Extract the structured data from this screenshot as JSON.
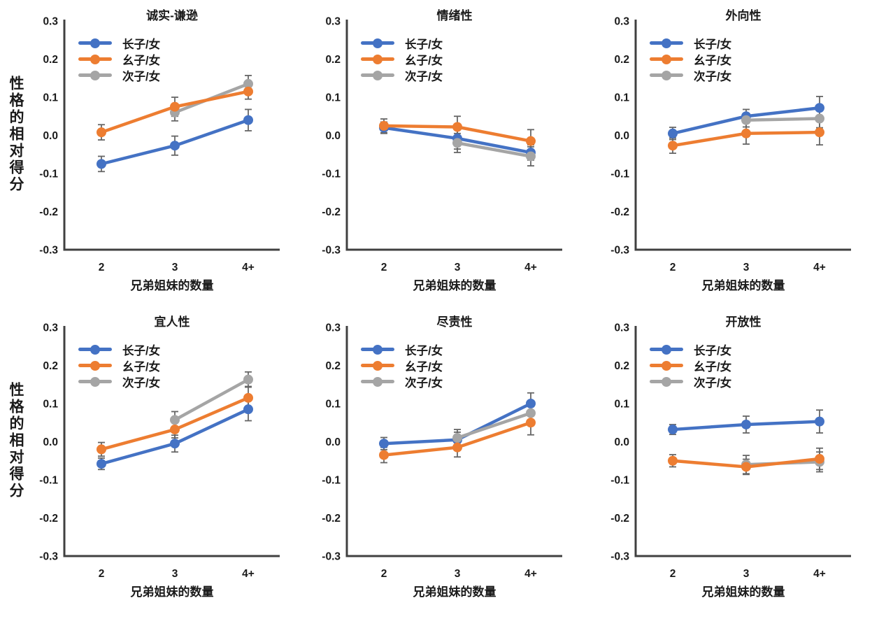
{
  "figure": {
    "y_axis_title": "性格的相对得分",
    "x_axis_title": "兄弟姐妹的数量"
  },
  "legend": [
    "长子/女",
    "幺子/女",
    "次子/女"
  ],
  "colors": {
    "firstborn": "#4472C4",
    "lastborn": "#ED7D31",
    "middleborn": "#A5A5A5",
    "error_bar": "#666666",
    "axis": "#404040",
    "text": "#1a1a1a",
    "background": "#ffffff"
  },
  "chart_data": [
    {
      "type": "line",
      "title": "诚实-谦逊",
      "categories": [
        "2",
        "3",
        "4+"
      ],
      "xlabel": "兄弟姐妹的数量",
      "ylabel": "性格的相对得分",
      "ylim": [
        -0.3,
        0.3
      ],
      "yticks": [
        "0.3",
        "0.2",
        "0.1",
        "0.0",
        "-0.1",
        "-0.2",
        "-0.3"
      ],
      "grid": false,
      "legend_position": "top-left-inside",
      "series": [
        {
          "name": "长子/女",
          "color": "#4472C4",
          "values": [
            -0.075,
            -0.027,
            0.04
          ],
          "errors": [
            0.02,
            0.025,
            0.028
          ]
        },
        {
          "name": "幺子/女",
          "color": "#ED7D31",
          "values": [
            0.008,
            0.075,
            0.115
          ],
          "errors": [
            0.02,
            0.025,
            0.02
          ]
        },
        {
          "name": "次子/女",
          "color": "#A5A5A5",
          "values": [
            null,
            0.06,
            0.135
          ],
          "errors": [
            null,
            0.022,
            0.022
          ]
        }
      ]
    },
    {
      "type": "line",
      "title": "情绪性",
      "categories": [
        "2",
        "3",
        "4+"
      ],
      "xlabel": "兄弟姐妹的数量",
      "ylabel": "性格的相对得分",
      "ylim": [
        -0.3,
        0.3
      ],
      "yticks": [
        "0.3",
        "0.2",
        "0.1",
        "0.0",
        "-0.1",
        "-0.2",
        "-0.3"
      ],
      "grid": false,
      "legend_position": "top-left-inside",
      "series": [
        {
          "name": "长子/女",
          "color": "#4472C4",
          "values": [
            0.02,
            -0.008,
            -0.045
          ],
          "errors": [
            0.015,
            0.028,
            0.02
          ]
        },
        {
          "name": "幺子/女",
          "color": "#ED7D31",
          "values": [
            0.025,
            0.022,
            -0.015
          ],
          "errors": [
            0.018,
            0.028,
            0.03
          ]
        },
        {
          "name": "次子/女",
          "color": "#A5A5A5",
          "values": [
            null,
            -0.02,
            -0.055
          ],
          "errors": [
            null,
            0.025,
            0.025
          ]
        }
      ]
    },
    {
      "type": "line",
      "title": "外向性",
      "categories": [
        "2",
        "3",
        "4+"
      ],
      "xlabel": "兄弟姐妹的数量",
      "ylabel": "性格的相对得分",
      "ylim": [
        -0.3,
        0.3
      ],
      "yticks": [
        "0.3",
        "0.2",
        "0.1",
        "0.0",
        "-0.1",
        "-0.2",
        "-0.3"
      ],
      "grid": false,
      "legend_position": "top-left-inside",
      "series": [
        {
          "name": "长子/女",
          "color": "#4472C4",
          "values": [
            0.005,
            0.05,
            0.072
          ],
          "errors": [
            0.016,
            0.018,
            0.03
          ]
        },
        {
          "name": "幺子/女",
          "color": "#ED7D31",
          "values": [
            -0.027,
            0.005,
            0.008
          ],
          "errors": [
            0.02,
            0.028,
            0.033
          ]
        },
        {
          "name": "次子/女",
          "color": "#A5A5A5",
          "values": [
            null,
            0.04,
            0.044
          ],
          "errors": [
            null,
            0.018,
            0.024
          ]
        }
      ]
    },
    {
      "type": "line",
      "title": "宜人性",
      "categories": [
        "2",
        "3",
        "4+"
      ],
      "xlabel": "兄弟姐妹的数量",
      "ylabel": "性格的相对得分",
      "ylim": [
        -0.3,
        0.3
      ],
      "yticks": [
        "0.3",
        "0.2",
        "0.1",
        "0.0",
        "-0.1",
        "-0.2",
        "-0.3"
      ],
      "grid": false,
      "legend_position": "top-left-inside",
      "series": [
        {
          "name": "长子/女",
          "color": "#4472C4",
          "values": [
            -0.058,
            -0.005,
            0.085
          ],
          "errors": [
            0.015,
            0.022,
            0.03
          ]
        },
        {
          "name": "幺子/女",
          "color": "#ED7D31",
          "values": [
            -0.02,
            0.032,
            0.115
          ],
          "errors": [
            0.018,
            0.022,
            0.03
          ]
        },
        {
          "name": "次子/女",
          "color": "#A5A5A5",
          "values": [
            null,
            0.057,
            0.163
          ],
          "errors": [
            null,
            0.022,
            0.02
          ]
        }
      ]
    },
    {
      "type": "line",
      "title": "尽责性",
      "categories": [
        "2",
        "3",
        "4+"
      ],
      "xlabel": "兄弟姐妹的数量",
      "ylabel": "性格的相对得分",
      "ylim": [
        -0.3,
        0.3
      ],
      "yticks": [
        "0.3",
        "0.2",
        "0.1",
        "0.0",
        "-0.1",
        "-0.2",
        "-0.3"
      ],
      "grid": false,
      "legend_position": "top-left-inside",
      "series": [
        {
          "name": "长子/女",
          "color": "#4472C4",
          "values": [
            -0.005,
            0.005,
            0.1
          ],
          "errors": [
            0.016,
            0.02,
            0.028
          ]
        },
        {
          "name": "幺子/女",
          "color": "#ED7D31",
          "values": [
            -0.035,
            -0.015,
            0.05
          ],
          "errors": [
            0.02,
            0.025,
            0.032
          ]
        },
        {
          "name": "次子/女",
          "color": "#A5A5A5",
          "values": [
            null,
            0.01,
            0.075
          ],
          "errors": [
            null,
            0.022,
            0.025
          ]
        }
      ]
    },
    {
      "type": "line",
      "title": "开放性",
      "categories": [
        "2",
        "3",
        "4+"
      ],
      "xlabel": "兄弟姐妹的数量",
      "ylabel": "性格的相对得分",
      "ylim": [
        -0.3,
        0.3
      ],
      "yticks": [
        "0.3",
        "0.2",
        "0.1",
        "0.0",
        "-0.1",
        "-0.2",
        "-0.3"
      ],
      "grid": false,
      "legend_position": "top-left-inside",
      "series": [
        {
          "name": "长子/女",
          "color": "#4472C4",
          "values": [
            0.032,
            0.045,
            0.053
          ],
          "errors": [
            0.013,
            0.022,
            0.03
          ]
        },
        {
          "name": "幺子/女",
          "color": "#ED7D31",
          "values": [
            -0.05,
            -0.066,
            -0.045
          ],
          "errors": [
            0.016,
            0.02,
            0.028
          ]
        },
        {
          "name": "次子/女",
          "color": "#A5A5A5",
          "values": [
            null,
            -0.06,
            -0.053
          ],
          "errors": [
            null,
            0.024,
            0.026
          ]
        }
      ]
    }
  ]
}
